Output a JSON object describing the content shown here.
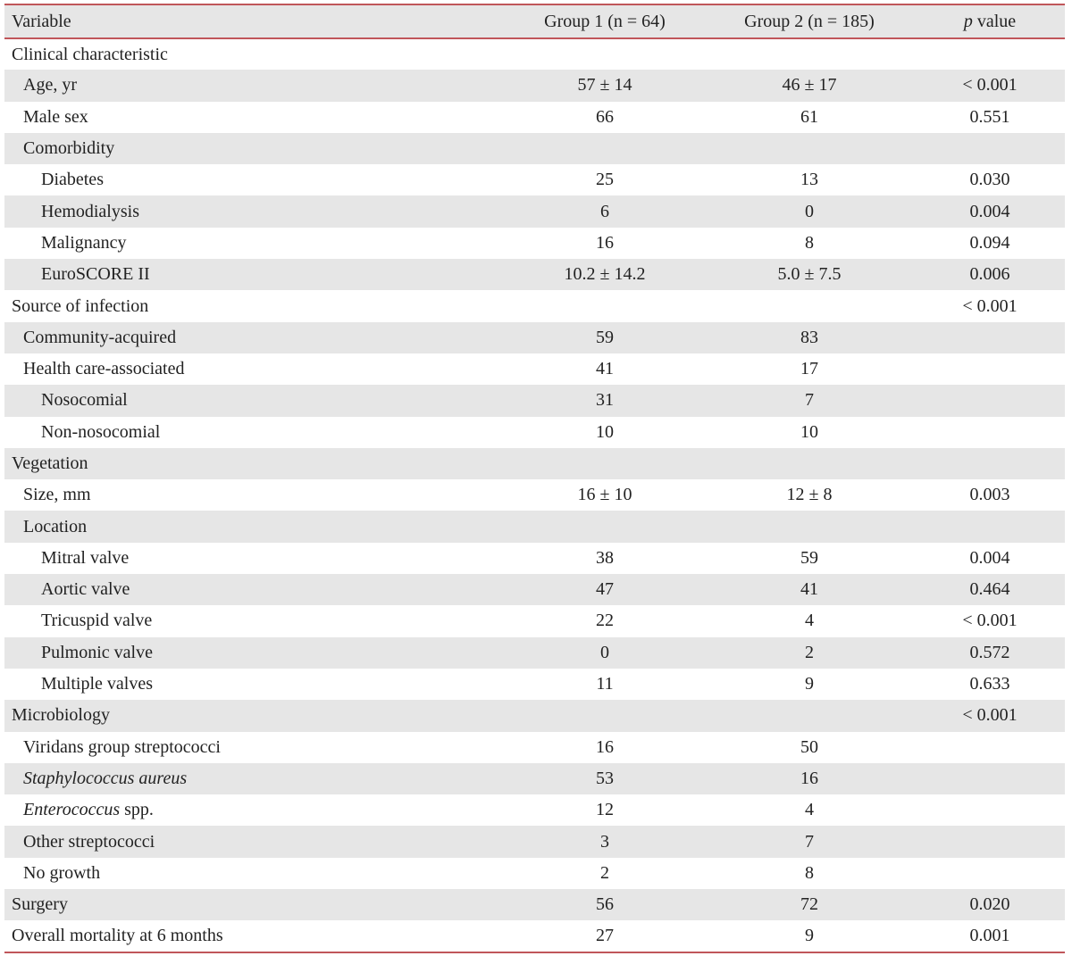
{
  "header": {
    "variable": "Variable",
    "group1": "Group 1 (n = 64)",
    "group2": "Group 2 (n = 185)",
    "p_italic": "p",
    "p_rest": " value"
  },
  "rows": [
    {
      "level": 0,
      "label": "Clinical characteristic",
      "g1": "",
      "g2": "",
      "p": ""
    },
    {
      "level": 1,
      "label": "Age, yr",
      "g1": "57 ± 14",
      "g2": "46 ± 17",
      "p": "< 0.001"
    },
    {
      "level": 1,
      "label": "Male sex",
      "g1": "66",
      "g2": "61",
      "p": "0.551"
    },
    {
      "level": 1,
      "label": "Comorbidity",
      "g1": "",
      "g2": "",
      "p": ""
    },
    {
      "level": 2,
      "label": "Diabetes",
      "g1": "25",
      "g2": "13",
      "p": "0.030"
    },
    {
      "level": 2,
      "label": "Hemodialysis",
      "g1": "6",
      "g2": "0",
      "p": "0.004"
    },
    {
      "level": 2,
      "label": "Malignancy",
      "g1": "16",
      "g2": "8",
      "p": "0.094"
    },
    {
      "level": 2,
      "label": "EuroSCORE II",
      "g1": "10.2 ± 14.2",
      "g2": "5.0 ± 7.5",
      "p": "0.006"
    },
    {
      "level": 0,
      "label": "Source of infection",
      "g1": "",
      "g2": "",
      "p": "< 0.001"
    },
    {
      "level": 1,
      "label": "Community-acquired",
      "g1": "59",
      "g2": "83",
      "p": ""
    },
    {
      "level": 1,
      "label": "Health care-associated",
      "g1": "41",
      "g2": "17",
      "p": ""
    },
    {
      "level": 2,
      "label": "Nosocomial",
      "g1": "31",
      "g2": "7",
      "p": ""
    },
    {
      "level": 2,
      "label": "Non-nosocomial",
      "g1": "10",
      "g2": "10",
      "p": ""
    },
    {
      "level": 0,
      "label": "Vegetation",
      "g1": "",
      "g2": "",
      "p": ""
    },
    {
      "level": 1,
      "label": "Size, mm",
      "g1": "16 ± 10",
      "g2": "12 ± 8",
      "p": "0.003"
    },
    {
      "level": 1,
      "label": "Location",
      "g1": "",
      "g2": "",
      "p": ""
    },
    {
      "level": 2,
      "label": "Mitral valve",
      "g1": "38",
      "g2": "59",
      "p": "0.004"
    },
    {
      "level": 2,
      "label": "Aortic valve",
      "g1": "47",
      "g2": "41",
      "p": "0.464"
    },
    {
      "level": 2,
      "label": "Tricuspid valve",
      "g1": "22",
      "g2": "4",
      "p": "< 0.001"
    },
    {
      "level": 2,
      "label": "Pulmonic valve",
      "g1": "0",
      "g2": "2",
      "p": "0.572"
    },
    {
      "level": 2,
      "label": "Multiple valves",
      "g1": "11",
      "g2": "9",
      "p": "0.633"
    },
    {
      "level": 0,
      "label": "Microbiology",
      "g1": "",
      "g2": "",
      "p": "< 0.001"
    },
    {
      "level": 1,
      "label": "Viridans group streptococci",
      "g1": "16",
      "g2": "50",
      "p": ""
    },
    {
      "level": 1,
      "label_italic": "Staphylococcus aureus",
      "label": "",
      "g1": "53",
      "g2": "16",
      "p": ""
    },
    {
      "level": 1,
      "label_italic": "Enterococcus",
      "label": " spp.",
      "g1": "12",
      "g2": "4",
      "p": ""
    },
    {
      "level": 1,
      "label": "Other streptococci",
      "g1": "3",
      "g2": "7",
      "p": ""
    },
    {
      "level": 1,
      "label": "No growth",
      "g1": "2",
      "g2": "8",
      "p": ""
    },
    {
      "level": 0,
      "label": "Surgery",
      "g1": "56",
      "g2": "72",
      "p": "0.020"
    },
    {
      "level": 0,
      "label": "Overall mortality at 6 months",
      "g1": "27",
      "g2": "9",
      "p": "0.001"
    }
  ]
}
